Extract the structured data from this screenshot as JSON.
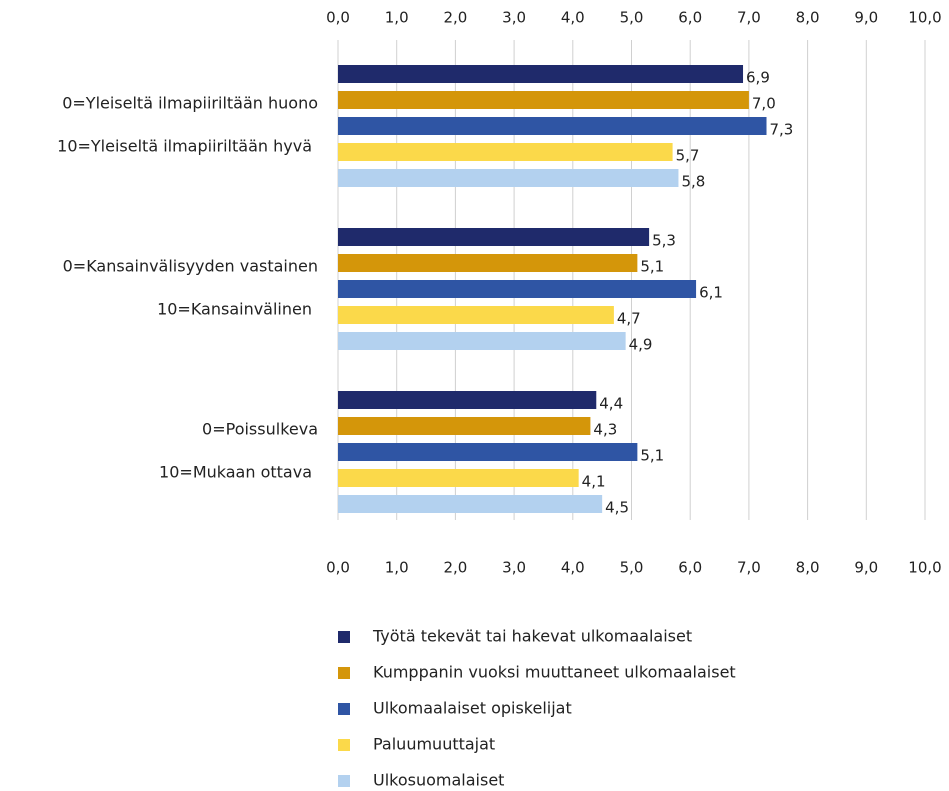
{
  "chart_data": {
    "type": "barh",
    "categories": [
      [
        "0=Yleiseltä ilmapiiriltään huono",
        "10=Yleiseltä ilmapiiriltään hyvä"
      ],
      [
        "0=Kansainvälisyyden vastainen",
        "10=Kansainvälinen"
      ],
      [
        "0=Poissulkeva",
        "10=Mukaan ottava"
      ]
    ],
    "series": [
      {
        "name": "Työtä tekevät tai hakevat ulkomaalaiset",
        "color": "#1f2a6b",
        "values": [
          6.9,
          5.3,
          4.4
        ],
        "value_labels": [
          "6,9",
          "5,3",
          "4,4"
        ]
      },
      {
        "name": "Kumppanin vuoksi muuttaneet ulkomaalaiset",
        "color": "#d4960a",
        "values": [
          7.0,
          5.1,
          4.3
        ],
        "value_labels": [
          "7,0",
          "5,1",
          "4,3"
        ]
      },
      {
        "name": "Ulkomaalaiset opiskelijat",
        "color": "#2f55a4",
        "values": [
          7.3,
          6.1,
          5.1
        ],
        "value_labels": [
          "7,3",
          "6,1",
          "5,1"
        ]
      },
      {
        "name": "Paluumuuttajat",
        "color": "#fbd94a",
        "values": [
          5.7,
          4.7,
          4.1
        ],
        "value_labels": [
          "5,7",
          "4,7",
          "4,1"
        ]
      },
      {
        "name": "Ulkosuomalaiset",
        "color": "#b3d1ef",
        "values": [
          5.8,
          4.9,
          4.5
        ],
        "value_labels": [
          "5,8",
          "4,9",
          "4,5"
        ]
      }
    ],
    "xlim": [
      0,
      10
    ],
    "xticks": [
      {
        "value": 0,
        "label": "0,0"
      },
      {
        "value": 1,
        "label": "1,0"
      },
      {
        "value": 2,
        "label": "2,0"
      },
      {
        "value": 3,
        "label": "3,0"
      },
      {
        "value": 4,
        "label": "4,0"
      },
      {
        "value": 5,
        "label": "5,0"
      },
      {
        "value": 6,
        "label": "6,0"
      },
      {
        "value": 7,
        "label": "7,0"
      },
      {
        "value": 8,
        "label": "8,0"
      },
      {
        "value": 9,
        "label": "9,0"
      },
      {
        "value": 10,
        "label": "10,0"
      }
    ],
    "grid": true
  }
}
